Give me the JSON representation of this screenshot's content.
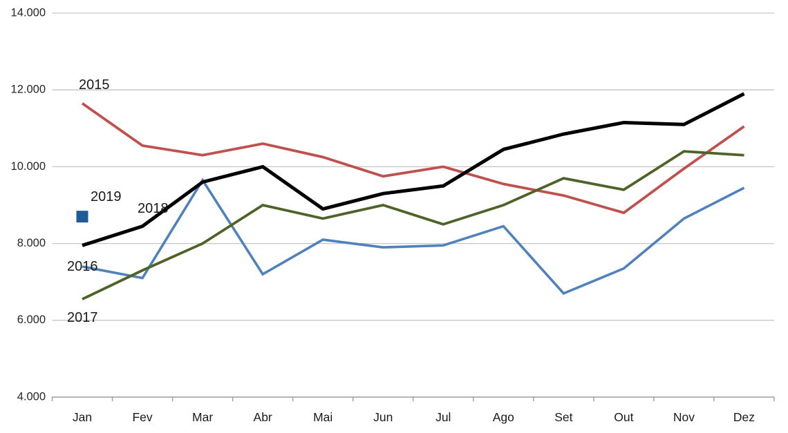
{
  "chart_data": {
    "type": "line",
    "title": "",
    "xlabel": "",
    "ylabel": "",
    "categories": [
      "Jan",
      "Fev",
      "Mar",
      "Abr",
      "Mai",
      "Jun",
      "Jul",
      "Ago",
      "Set",
      "Out",
      "Nov",
      "Dez"
    ],
    "y_axis": {
      "min": 4000,
      "max": 14000,
      "step": 2000,
      "tick_labels": [
        "4.000",
        "6.000",
        "8.000",
        "10.000",
        "12.000",
        "14.000"
      ]
    },
    "grid": true,
    "legend_position": "inline-labels-near-series",
    "colors": {
      "gridline": "#c6c6c6",
      "axis": "#9b9b9b",
      "background": "#ffffff"
    },
    "series": [
      {
        "name": "2015",
        "color": "#C0504D",
        "line_width": 3.8,
        "values": [
          11650,
          10550,
          10300,
          10600,
          10250,
          9750,
          10000,
          9550,
          9250,
          8800,
          9950,
          11050
        ]
      },
      {
        "name": "2016",
        "color": "#4F81BD",
        "line_width": 3.6,
        "values": [
          7400,
          7100,
          9650,
          7200,
          8100,
          7900,
          7950,
          8450,
          6700,
          7350,
          8650,
          9450
        ]
      },
      {
        "name": "2017",
        "color": "#4F6228",
        "line_width": 3.8,
        "values": [
          6550,
          7300,
          8000,
          9000,
          8650,
          9000,
          8500,
          9000,
          9700,
          9400,
          10400,
          10300
        ]
      },
      {
        "name": "2018",
        "color": "#000000",
        "line_width": 5,
        "values": [
          7950,
          8450,
          9600,
          10000,
          8900,
          9300,
          9500,
          10450,
          10850,
          11150,
          11100,
          11900
        ]
      },
      {
        "name": "2019",
        "color": "#205A97",
        "marker": "square",
        "values": [
          8700
        ]
      }
    ]
  }
}
